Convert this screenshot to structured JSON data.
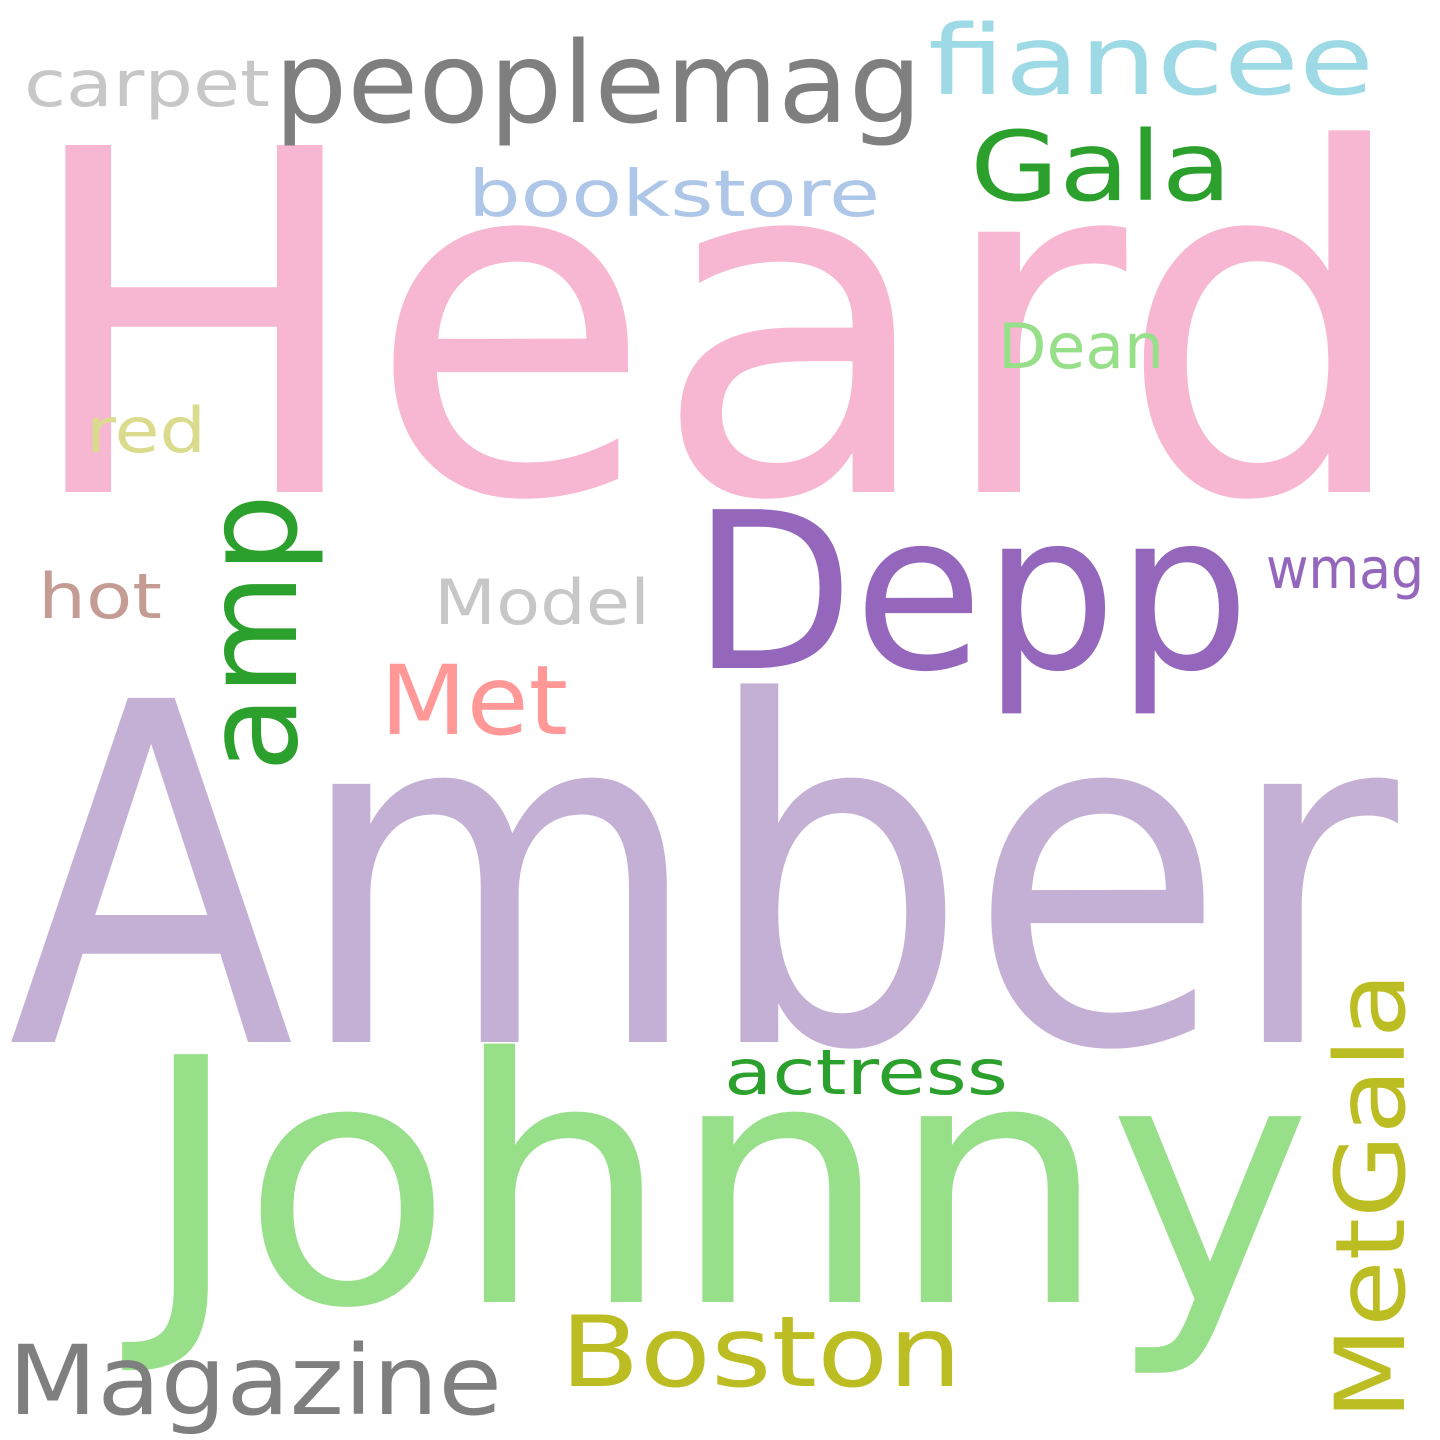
{
  "background": "#ffffff",
  "words": [
    {
      "text": "Heard",
      "color": "#f7b6d2"
    },
    {
      "text": "Amber",
      "color": "#c5b0d5"
    },
    {
      "text": "Johnny",
      "color": "#98df8a"
    },
    {
      "text": "Depp",
      "color": "#9467bd"
    },
    {
      "text": "peoplemag",
      "color": "#7f7f7f"
    },
    {
      "text": "fiancee",
      "color": "#9edae5"
    },
    {
      "text": "carpet",
      "color": "#c7c7c7"
    },
    {
      "text": "Gala",
      "color": "#2ca02c"
    },
    {
      "text": "bookstore",
      "color": "#aec7e8"
    },
    {
      "text": "Dean",
      "color": "#98df8a"
    },
    {
      "text": "red",
      "color": "#dbdb8d"
    },
    {
      "text": "amp",
      "color": "#2ca02c"
    },
    {
      "text": "hot",
      "color": "#c49c94"
    },
    {
      "text": "Model",
      "color": "#c7c7c7"
    },
    {
      "text": "wmag",
      "color": "#9467bd"
    },
    {
      "text": "Met",
      "color": "#ff9896"
    },
    {
      "text": "actress",
      "color": "#2ca02c"
    },
    {
      "text": "MetGala",
      "color": "#bcbd22"
    },
    {
      "text": "Magazine",
      "color": "#7f7f7f"
    },
    {
      "text": "Boston",
      "color": "#bcbd22"
    }
  ]
}
